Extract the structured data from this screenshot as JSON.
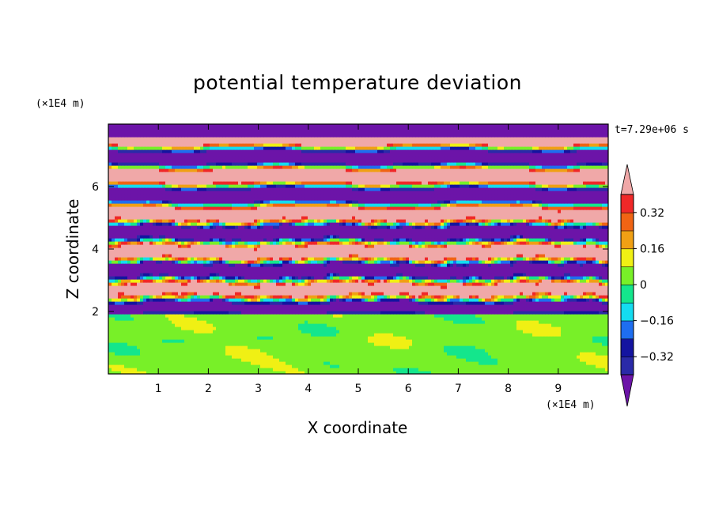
{
  "chart_data": {
    "type": "heatmap",
    "title": "potential temperature deviation",
    "xlabel": "X coordinate",
    "ylabel": "Z coordinate",
    "x_unit": "(×1E4 m)",
    "y_unit": "(×1E4 m)",
    "time_label": "t=7.29e+06 s",
    "xlim": [
      0,
      10
    ],
    "ylim": [
      0,
      8
    ],
    "x_ticks": [
      "1",
      "2",
      "3",
      "4",
      "5",
      "6",
      "7",
      "8",
      "9"
    ],
    "y_ticks": [
      "2",
      "4",
      "6"
    ],
    "x_tick_values": [
      1,
      2,
      3,
      4,
      5,
      6,
      7,
      8,
      9
    ],
    "y_tick_values": [
      2,
      4,
      6
    ],
    "colorbar": {
      "levels": [
        -0.4,
        -0.32,
        -0.24,
        -0.16,
        -0.08,
        0,
        0.08,
        0.16,
        0.24,
        0.32,
        0.4
      ],
      "tick_labels": [
        "0.32",
        "0.16",
        "0",
        "−0.16",
        "−0.32"
      ],
      "tick_values": [
        0.32,
        0.16,
        0,
        -0.16,
        -0.32
      ],
      "colors": [
        "#2a2aa8",
        "#1414a0",
        "#1e6ef0",
        "#14dcf0",
        "#14e68c",
        "#78f028",
        "#f0f014",
        "#f0a014",
        "#f06414",
        "#f02828"
      ],
      "under_color": "#6c14a8",
      "over_color": "#f0a8a8",
      "extend": "both"
    }
  }
}
